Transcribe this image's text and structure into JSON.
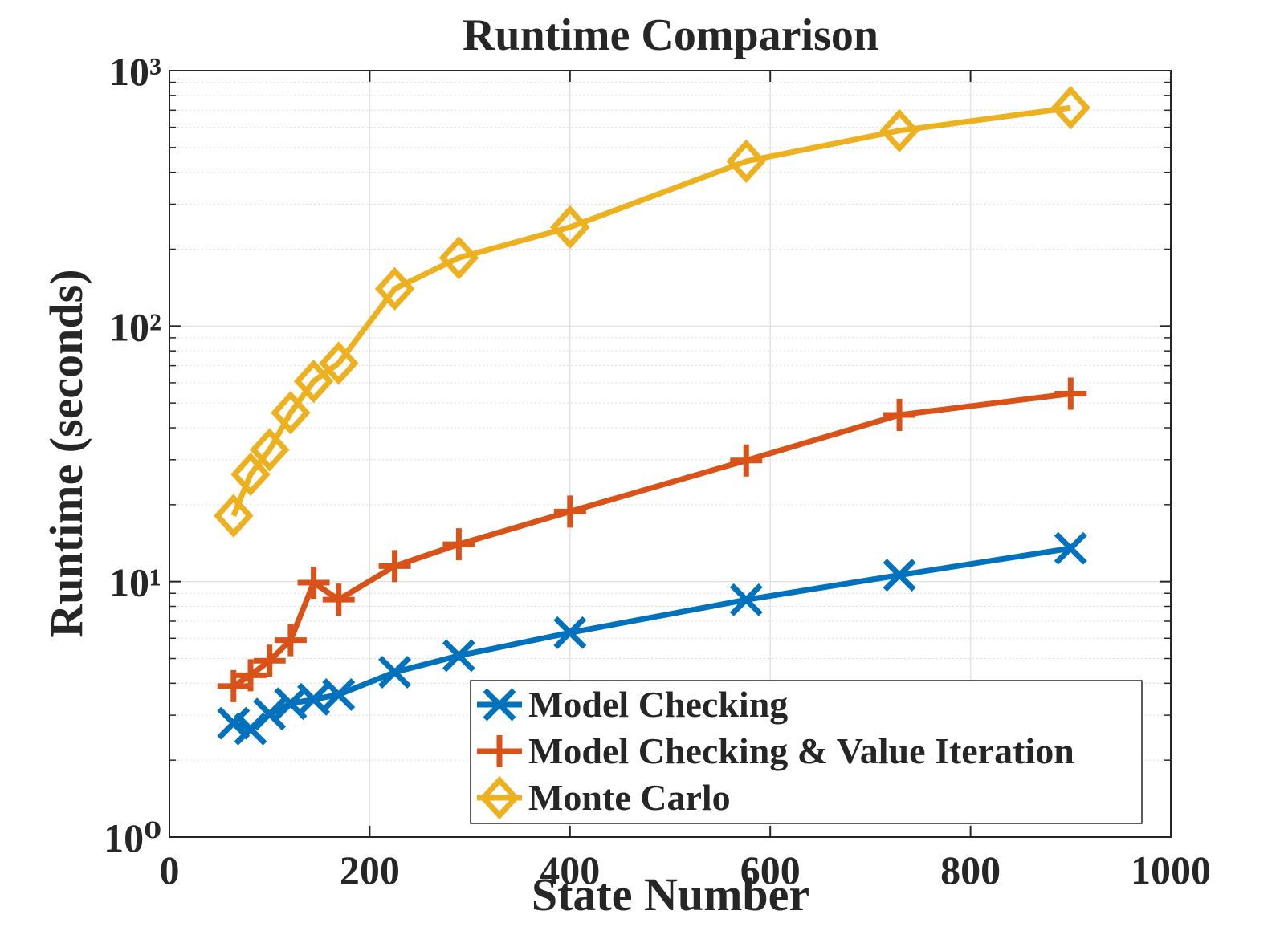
{
  "chart_data": {
    "type": "line",
    "title": "Runtime Comparison",
    "xlabel": "State Number",
    "ylabel": "Runtime (seconds)",
    "xlim": [
      0,
      1000
    ],
    "xticks": [
      0,
      200,
      400,
      600,
      800,
      1000
    ],
    "ylim": [
      1,
      1000
    ],
    "yticks": [
      {
        "value": 1,
        "label": "10⁰"
      },
      {
        "value": 10,
        "label": "10¹"
      },
      {
        "value": 100,
        "label": "10²"
      },
      {
        "value": 1000,
        "label": "10³"
      }
    ],
    "yscale": "log",
    "grid": true,
    "legend": "lower right",
    "x": [
      64,
      81,
      100,
      121,
      144,
      169,
      225,
      289,
      400,
      576,
      729,
      900
    ],
    "series": [
      {
        "name": "Model Checking",
        "color": "#0072bd",
        "marker": "x",
        "values": [
          2.79,
          2.65,
          3.03,
          3.33,
          3.46,
          3.61,
          4.42,
          5.13,
          6.31,
          8.49,
          10.6,
          13.5
        ]
      },
      {
        "name": "Model Checking & Value Iteration",
        "color": "#d95319",
        "marker": "+",
        "values": [
          3.9,
          4.3,
          4.9,
          5.9,
          9.9,
          8.5,
          11.5,
          14.0,
          18.8,
          29.8,
          44.9,
          54.4
        ]
      },
      {
        "name": "Monte Carlo",
        "color": "#edb120",
        "marker": "diamond",
        "values": [
          18.1,
          26.3,
          32.8,
          45.8,
          60.8,
          71.6,
          140,
          185,
          244,
          442,
          582,
          716
        ]
      }
    ]
  }
}
